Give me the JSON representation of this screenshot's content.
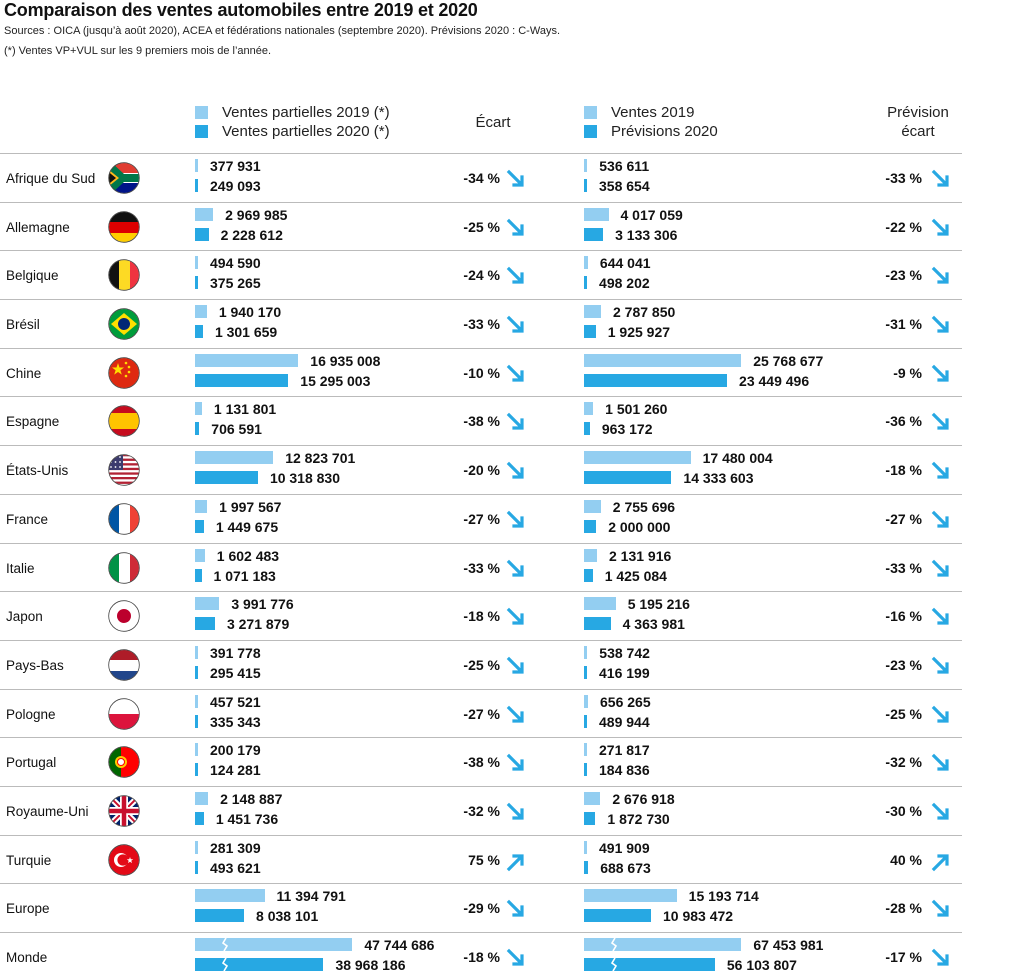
{
  "title": "Comparaison des ventes automobiles entre 2019 et 2020",
  "sources": "Sources : OICA (jusqu’à août 2020), ACEA et fédérations nationales (septembre 2020). Prévisions 2020 : C-Ways.",
  "footnote": "(*) Ventes VP+VUL sur les 9 premiers mois de l’année.",
  "legend": {
    "left_2019": "Ventes partielles 2019 (*)",
    "left_2020": "Ventes partielles 2020 (*)",
    "right_2019": "Ventes 2019",
    "right_2020": "Prévisions 2020"
  },
  "headers": {
    "ecart": "Écart",
    "prevision_ecart_1": "Prévision",
    "prevision_ecart_2": "écart"
  },
  "colors": {
    "light": "#93cef1",
    "dark": "#27a8e3",
    "grid": "#bbbbbb"
  },
  "chart_data": {
    "type": "bar",
    "title": "Comparaison des ventes automobiles entre 2019 et 2020",
    "categories": [
      "Afrique du Sud",
      "Allemagne",
      "Belgique",
      "Brésil",
      "Chine",
      "Espagne",
      "États-Unis",
      "France",
      "Italie",
      "Japon",
      "Pays-Bas",
      "Pologne",
      "Portugal",
      "Royaume-Uni",
      "Turquie",
      "Europe",
      "Monde"
    ],
    "flags": [
      "flag-south-africa",
      "flag-germany",
      "flag-belgium",
      "flag-brazil",
      "flag-china",
      "flag-spain",
      "flag-usa",
      "flag-france",
      "flag-italy",
      "flag-japan",
      "flag-netherlands",
      "flag-poland",
      "flag-portugal",
      "flag-uk",
      "flag-turkey",
      "",
      ""
    ],
    "series": [
      {
        "name": "Ventes partielles 2019 (*)",
        "values": [
          377931,
          2969985,
          494590,
          1940170,
          16935008,
          1131801,
          12823701,
          1997567,
          1602483,
          3991776,
          391778,
          457521,
          200179,
          2148887,
          281309,
          11394791,
          47744686
        ],
        "labels": [
          "377 931",
          "2 969 985",
          "494 590",
          "1 940 170",
          "16 935 008",
          "1 131 801",
          "12 823 701",
          "1 997 567",
          "1 602 483",
          "3 991 776",
          "391 778",
          "457 521",
          "200 179",
          "2 148 887",
          "281 309",
          "11 394 791",
          "47 744 686"
        ]
      },
      {
        "name": "Ventes partielles 2020 (*)",
        "values": [
          249093,
          2228612,
          375265,
          1301659,
          15295003,
          706591,
          10318830,
          1449675,
          1071183,
          3271879,
          295415,
          335343,
          124281,
          1451736,
          493621,
          8038101,
          38968186
        ],
        "labels": [
          "249 093",
          "2 228 612",
          "375 265",
          "1 301 659",
          "15 295 003",
          "706 591",
          "10 318 830",
          "1 449 675",
          "1 071 183",
          "3 271 879",
          "295 415",
          "335 343",
          "124 281",
          "1 451 736",
          "493 621",
          "8 038 101",
          "38 968 186"
        ]
      },
      {
        "name": "Ventes 2019",
        "values": [
          536611,
          4017059,
          644041,
          2787850,
          25768677,
          1501260,
          17480004,
          2755696,
          2131916,
          5195216,
          538742,
          656265,
          271817,
          2676918,
          491909,
          15193714,
          67453981
        ],
        "labels": [
          "536 611",
          "4 017 059",
          "644 041",
          "2 787 850",
          "25 768 677",
          "1 501 260",
          "17 480 004",
          "2 755 696",
          "2 131 916",
          "5 195 216",
          "538 742",
          "656 265",
          "271 817",
          "2 676 918",
          "491 909",
          "15 193 714",
          "67 453 981"
        ]
      },
      {
        "name": "Prévisions 2020",
        "values": [
          358654,
          3133306,
          498202,
          1925927,
          23449496,
          963172,
          14333603,
          2000000,
          1425084,
          4363981,
          416199,
          489944,
          184836,
          1872730,
          688673,
          10983472,
          56103807
        ],
        "labels": [
          "358 654",
          "3 133 306",
          "498 202",
          "1 925 927",
          "23 449 496",
          "963 172",
          "14 333 603",
          "2 000 000",
          "1 425 084",
          "4 363 981",
          "416 199",
          "489 944",
          "184 836",
          "1 872 730",
          "688 673",
          "10 983 472",
          "56 103 807"
        ]
      }
    ],
    "ecart": [
      "-34 %",
      "-25 %",
      "-24 %",
      "-33 %",
      "-10 %",
      "-38 %",
      "-20 %",
      "-27 %",
      "-33 %",
      "-18 %",
      "-25 %",
      "-27 %",
      "-38 %",
      "-32 %",
      "75 %",
      "-29 %",
      "-18 %"
    ],
    "prevision_ecart": [
      "-33 %",
      "-22 %",
      "-23 %",
      "-31 %",
      "-9 %",
      "-36 %",
      "-18 %",
      "-27 %",
      "-33 %",
      "-16 %",
      "-23 %",
      "-25 %",
      "-32 %",
      "-30 %",
      "40 %",
      "-28 %",
      "-17 %"
    ],
    "truncated_rows": [
      "Monde"
    ]
  }
}
